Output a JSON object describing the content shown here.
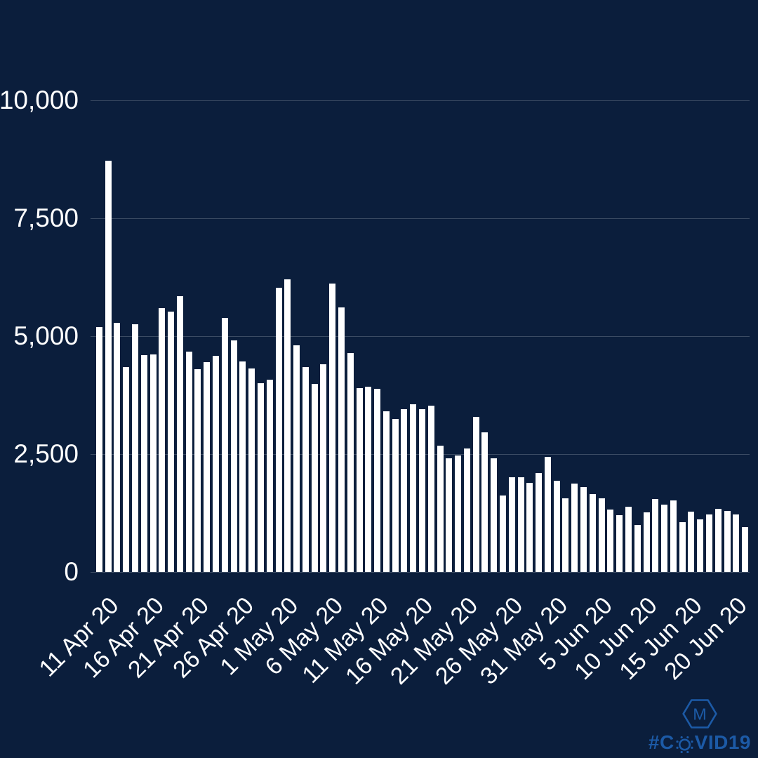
{
  "colors": {
    "background": "#0b1e3c",
    "bar": "#ffffff",
    "gridline": "rgba(255,255,255,0.20)",
    "axis_text": "#ffffff",
    "watermark_blue": "#1c5aa6"
  },
  "watermark": {
    "logo_letter": "M",
    "hashtag_prefix": "#C",
    "hashtag_suffix": "VID19",
    "full_text": "#COVID19"
  },
  "chart_data": {
    "type": "bar",
    "title": "",
    "xlabel": "",
    "ylabel": "",
    "ylim": [
      0,
      10000
    ],
    "grid": "horizontal",
    "legend": "none",
    "y_ticks": [
      0,
      2500,
      5000,
      7500,
      10000
    ],
    "y_tick_labels": [
      "0",
      "2,500",
      "5,000",
      "7,500",
      "10,000"
    ],
    "x_tick_labels": [
      "11 Apr 20",
      "16 Apr 20",
      "21 Apr 20",
      "26 Apr 20",
      "1 May 20",
      "6 May 20",
      "11 May 20",
      "16 May 20",
      "21 May 20",
      "26 May 20",
      "31 May 20",
      "5 Jun 20",
      "10 Jun 20",
      "15 Jun 20",
      "20 Jun 20"
    ],
    "x_tick_interval_bars": 5,
    "x": [
      "11 Apr 20",
      "12 Apr 20",
      "13 Apr 20",
      "14 Apr 20",
      "15 Apr 20",
      "16 Apr 20",
      "17 Apr 20",
      "18 Apr 20",
      "19 Apr 20",
      "20 Apr 20",
      "21 Apr 20",
      "22 Apr 20",
      "23 Apr 20",
      "24 Apr 20",
      "25 Apr 20",
      "26 Apr 20",
      "27 Apr 20",
      "28 Apr 20",
      "29 Apr 20",
      "30 Apr 20",
      "1 May 20",
      "2 May 20",
      "3 May 20",
      "4 May 20",
      "5 May 20",
      "6 May 20",
      "7 May 20",
      "8 May 20",
      "9 May 20",
      "10 May 20",
      "11 May 20",
      "12 May 20",
      "13 May 20",
      "14 May 20",
      "15 May 20",
      "16 May 20",
      "17 May 20",
      "18 May 20",
      "19 May 20",
      "20 May 20",
      "21 May 20",
      "22 May 20",
      "23 May 20",
      "24 May 20",
      "25 May 20",
      "26 May 20",
      "27 May 20",
      "28 May 20",
      "29 May 20",
      "30 May 20",
      "31 May 20",
      "1 Jun 20",
      "2 Jun 20",
      "3 Jun 20",
      "4 Jun 20",
      "5 Jun 20",
      "6 Jun 20",
      "7 Jun 20",
      "8 Jun 20",
      "9 Jun 20",
      "10 Jun 20",
      "11 Jun 20",
      "12 Jun 20",
      "13 Jun 20",
      "14 Jun 20",
      "15 Jun 20",
      "16 Jun 20",
      "17 Jun 20",
      "18 Jun 20",
      "19 Jun 20",
      "20 Jun 20",
      "21 Jun 20",
      "22 Jun 20"
    ],
    "values": [
      5195,
      8719,
      5288,
      4342,
      5252,
      4603,
      4617,
      5599,
      5525,
      5850,
      4676,
      4301,
      4451,
      4583,
      5386,
      4913,
      4463,
      4309,
      3996,
      4076,
      6032,
      6201,
      4806,
      4339,
      3985,
      4406,
      6111,
      5614,
      4649,
      3896,
      3923,
      3877,
      3403,
      3242,
      3446,
      3560,
      3450,
      3534,
      2684,
      2412,
      2472,
      2615,
      3287,
      2959,
      2409,
      1625,
      2004,
      2013,
      1887,
      2095,
      2445,
      1936,
      1570,
      1871,
      1805,
      1650,
      1557,
      1326,
      1205,
      1387,
      1003,
      1266,
      1541,
      1425,
      1514,
      1056,
      1279,
      1115,
      1218,
      1346,
      1295,
      1221,
      958
    ]
  }
}
